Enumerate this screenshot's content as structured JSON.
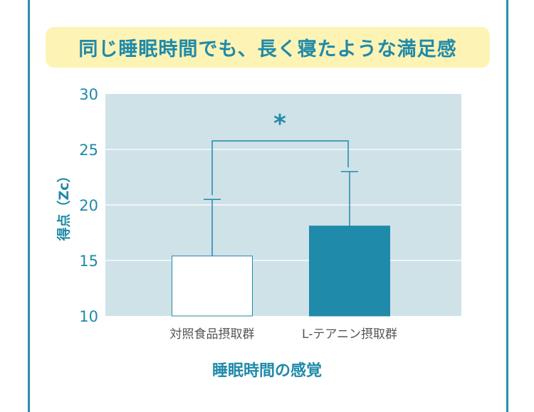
{
  "headline": "同じ睡眠時間でも、長く寝たような満足感",
  "chart_data": {
    "type": "bar",
    "categories": [
      "対照食品摂取群",
      "L-テアニン摂取群"
    ],
    "values": [
      15.4,
      18.1
    ],
    "error_upper": [
      20.5,
      23.0
    ],
    "ylabel": "得点（Zc）",
    "xlabel": "睡眠時間の感覚",
    "ylim": [
      10,
      30
    ],
    "yticks": [
      10,
      15,
      20,
      25,
      30
    ],
    "grid": true,
    "significance": "*",
    "colors": {
      "bar1": "#ffffff",
      "bar2": "#1f8aa9",
      "background": "#cfe2e8",
      "accent": "#1f8aa9"
    }
  }
}
